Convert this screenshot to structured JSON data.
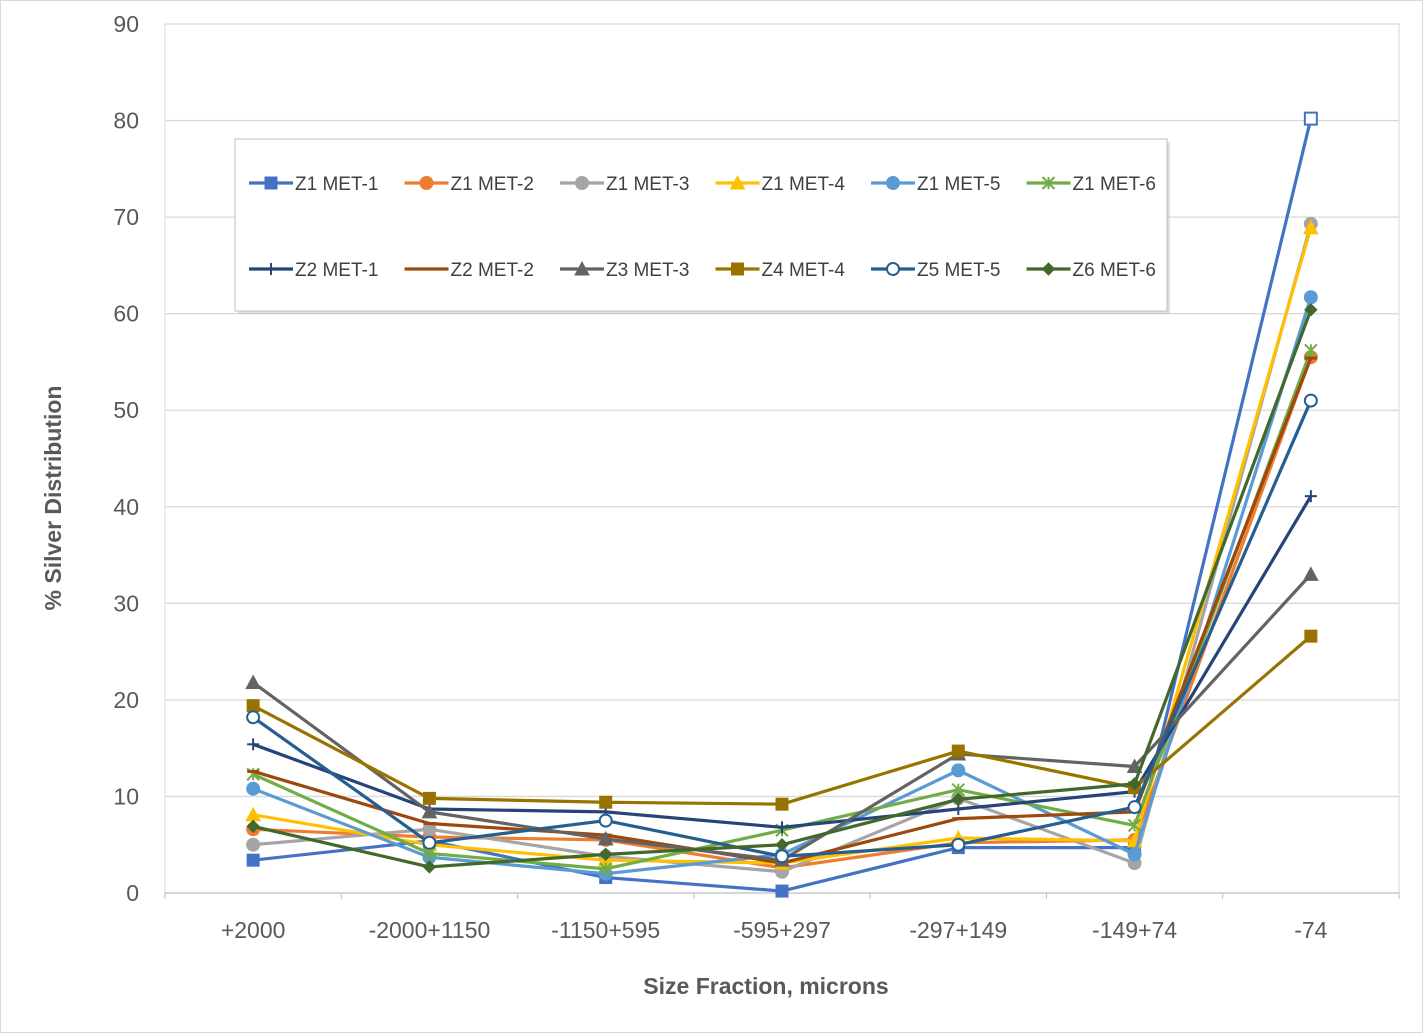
{
  "chart_data": {
    "type": "line",
    "title": "",
    "xlabel": "Size Fraction, microns",
    "ylabel": "% Silver Distribution",
    "categories": [
      "+2000",
      "-2000+1150",
      "-1150+595",
      "-595+297",
      "-297+149",
      "-149+74",
      "-74"
    ],
    "ylim": [
      0,
      90
    ],
    "yticks": [
      0,
      10,
      20,
      30,
      40,
      50,
      60,
      70,
      80,
      90
    ],
    "grid": "horizontal",
    "legend_position": "upper-left inside plot",
    "series": [
      {
        "name": "Z1 MET-1",
        "color": "#4472C4",
        "marker": "square",
        "values": [
          3.4,
          5.4,
          1.6,
          0.2,
          4.7,
          4.7,
          80.2
        ]
      },
      {
        "name": "Z1 MET-2",
        "color": "#ED7D31",
        "marker": "circle",
        "values": [
          6.6,
          5.8,
          5.5,
          2.6,
          5.2,
          5.5,
          55.5
        ]
      },
      {
        "name": "Z1 MET-3",
        "color": "#A5A5A5",
        "marker": "circle",
        "values": [
          5.0,
          6.6,
          3.8,
          2.2,
          9.8,
          3.1,
          69.3
        ]
      },
      {
        "name": "Z1 MET-4",
        "color": "#FFC000",
        "marker": "triangle",
        "values": [
          8.1,
          5.0,
          3.4,
          3.1,
          5.7,
          5.4,
          68.9
        ]
      },
      {
        "name": "Z1 MET-5",
        "color": "#5B9BD5",
        "marker": "circle",
        "values": [
          10.8,
          3.7,
          2.0,
          4.0,
          12.7,
          4.0,
          61.7
        ]
      },
      {
        "name": "Z1 MET-6",
        "color": "#70AD47",
        "marker": "asterisk",
        "values": [
          12.3,
          4.1,
          2.5,
          6.5,
          10.7,
          7.0,
          56.2
        ]
      },
      {
        "name": "Z2 MET-1",
        "color": "#264478",
        "marker": "plus",
        "values": [
          15.4,
          8.7,
          8.4,
          6.8,
          8.7,
          10.5,
          41.1
        ]
      },
      {
        "name": "Z2 MET-2",
        "color": "#9E480E",
        "marker": "dash",
        "values": [
          12.6,
          7.2,
          6.0,
          3.1,
          7.7,
          8.4,
          55.4
        ]
      },
      {
        "name": "Z3 MET-3",
        "color": "#636363",
        "marker": "triangle",
        "values": [
          21.8,
          8.4,
          5.6,
          3.4,
          14.4,
          13.1,
          33.0
        ]
      },
      {
        "name": "Z4 MET-4",
        "color": "#997300",
        "marker": "square",
        "values": [
          19.4,
          9.8,
          9.4,
          9.2,
          14.7,
          10.9,
          26.6
        ]
      },
      {
        "name": "Z5 MET-5",
        "color": "#255E91",
        "marker": "open-circle",
        "values": [
          18.2,
          5.2,
          7.5,
          3.8,
          5.0,
          8.9,
          51.0
        ]
      },
      {
        "name": "Z6 MET-6",
        "color": "#43682B",
        "marker": "diamond",
        "values": [
          6.9,
          2.7,
          4.0,
          5.0,
          9.7,
          11.3,
          60.4
        ]
      }
    ]
  }
}
